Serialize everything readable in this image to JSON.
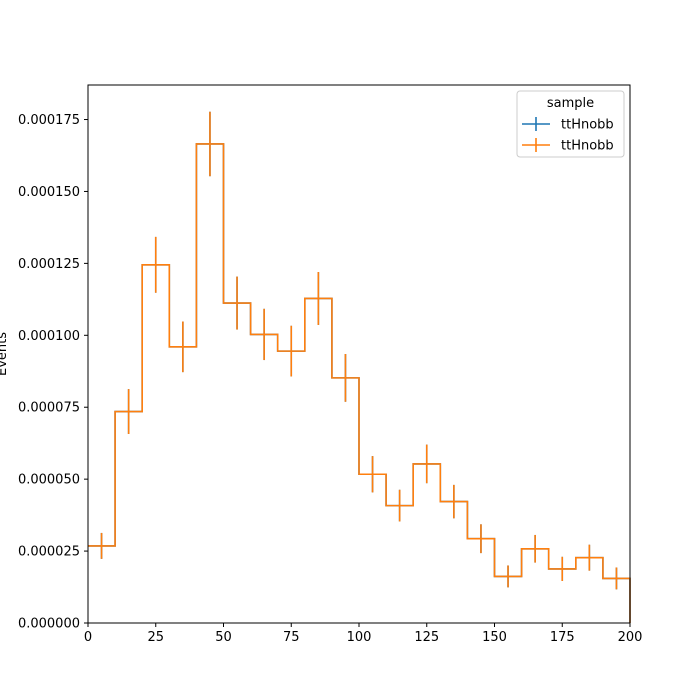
{
  "chart_data": {
    "type": "histogram",
    "xlabel": "",
    "ylabel": "Events",
    "xlim": [
      0,
      200
    ],
    "ylim": [
      0,
      0.000187
    ],
    "xticks": [
      0,
      25,
      50,
      75,
      100,
      125,
      150,
      175,
      200
    ],
    "yticks": [
      "0.000000",
      "0.000025",
      "0.000050",
      "0.000075",
      "0.000100",
      "0.000125",
      "0.000150",
      "0.000175"
    ],
    "ytick_values": [
      0,
      2.5e-05,
      5e-05,
      7.5e-05,
      0.0001,
      0.000125,
      0.00015,
      0.000175
    ],
    "bin_edges": [
      0,
      10,
      20,
      30,
      40,
      50,
      60,
      70,
      80,
      90,
      100,
      110,
      120,
      130,
      140,
      150,
      160,
      170,
      180,
      190,
      200
    ],
    "legend": {
      "title": "sample",
      "placement": "upper right"
    },
    "grid": false,
    "series": [
      {
        "name": "ttHnobb",
        "color": "#1f77b4",
        "values": [
          2.68e-05,
          7.35e-05,
          0.0001245,
          9.6e-05,
          0.0001665,
          0.0001112,
          0.0001003,
          9.45e-05,
          0.0001128,
          8.52e-05,
          5.17e-05,
          4.08e-05,
          5.53e-05,
          4.22e-05,
          2.93e-05,
          1.62e-05,
          2.58e-05,
          1.88e-05,
          2.27e-05,
          1.55e-05
        ],
        "errors": [
          4.5e-06,
          7.8e-06,
          9.7e-06,
          8.8e-06,
          1.12e-05,
          9.2e-06,
          8.9e-06,
          8.8e-06,
          9.2e-06,
          8.3e-06,
          6.3e-06,
          5.5e-06,
          6.7e-06,
          5.8e-06,
          5e-06,
          3.8e-06,
          4.8e-06,
          4.2e-06,
          4.5e-06,
          3.8e-06
        ]
      },
      {
        "name": "ttHnobb",
        "color": "#ff7f0e",
        "values": [
          2.68e-05,
          7.35e-05,
          0.0001245,
          9.6e-05,
          0.0001665,
          0.0001112,
          0.0001003,
          9.45e-05,
          0.0001128,
          8.52e-05,
          5.17e-05,
          4.08e-05,
          5.53e-05,
          4.22e-05,
          2.93e-05,
          1.62e-05,
          2.58e-05,
          1.88e-05,
          2.27e-05,
          1.55e-05
        ],
        "errors": [
          4.5e-06,
          7.8e-06,
          9.7e-06,
          8.8e-06,
          1.12e-05,
          9.2e-06,
          8.9e-06,
          8.8e-06,
          9.2e-06,
          8.3e-06,
          6.3e-06,
          5.5e-06,
          6.7e-06,
          5.8e-06,
          5e-06,
          3.8e-06,
          4.8e-06,
          4.2e-06,
          4.5e-06,
          3.8e-06
        ]
      }
    ]
  }
}
